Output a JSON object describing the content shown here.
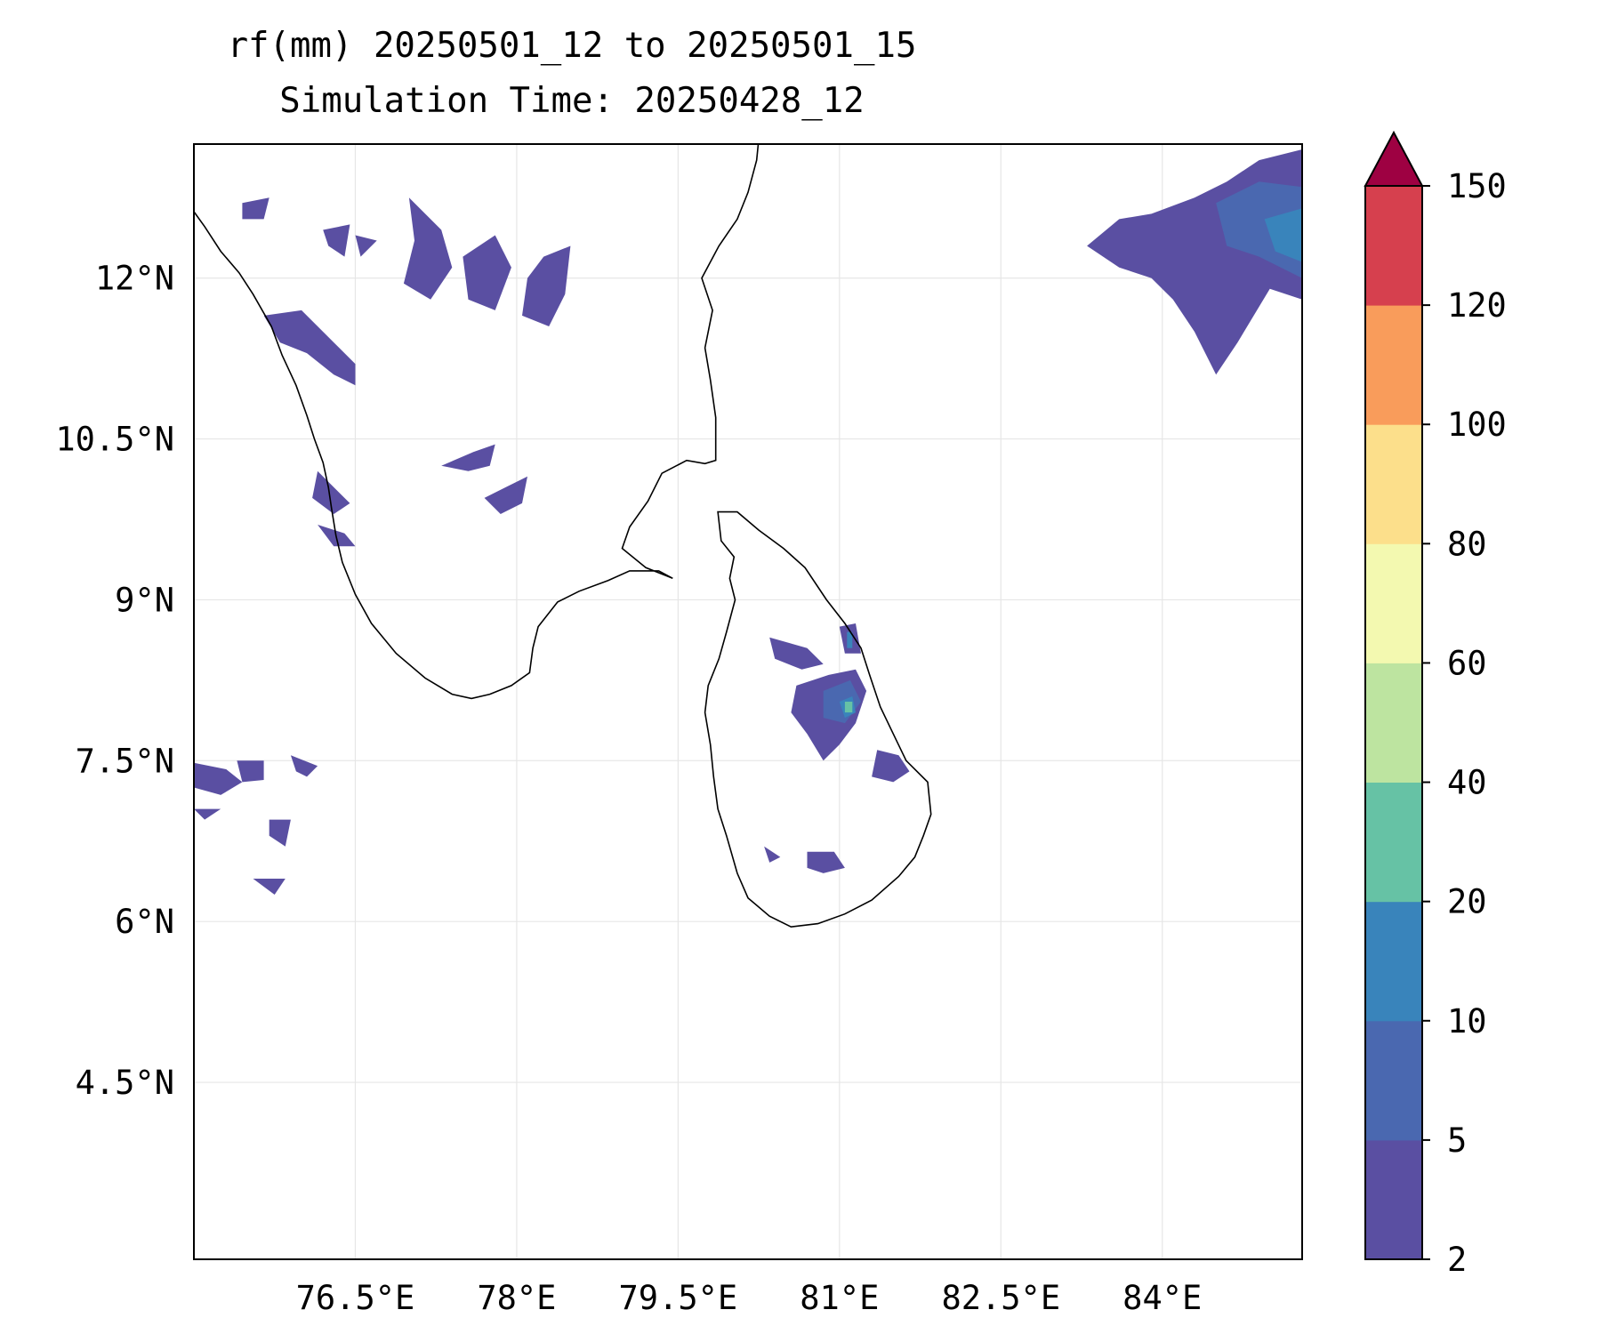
{
  "title": {
    "line1": "rf(mm) 20250501_12 to 20250501_15",
    "line2": "Simulation Time: 20250428_12"
  },
  "map": {
    "lon_range": [
      75.0,
      85.3
    ],
    "lat_range": [
      2.85,
      13.25
    ],
    "lon_ticks": [
      {
        "value": 76.5,
        "label": "76.5°E"
      },
      {
        "value": 78.0,
        "label": "78°E"
      },
      {
        "value": 79.5,
        "label": "79.5°E"
      },
      {
        "value": 81.0,
        "label": "81°E"
      },
      {
        "value": 82.5,
        "label": "82.5°E"
      },
      {
        "value": 84.0,
        "label": "84°E"
      }
    ],
    "lat_ticks": [
      {
        "value": 4.5,
        "label": "4.5°N"
      },
      {
        "value": 6.0,
        "label": "6°N"
      },
      {
        "value": 7.5,
        "label": "7.5°N"
      },
      {
        "value": 9.0,
        "label": "9°N"
      },
      {
        "value": 10.5,
        "label": "10.5°N"
      },
      {
        "value": 12.0,
        "label": "12°N"
      }
    ],
    "gridlines": true,
    "coastline_color": "#000000"
  },
  "colorbar": {
    "levels": [
      2,
      5,
      10,
      20,
      40,
      60,
      80,
      100,
      120,
      150
    ],
    "colors": [
      "#5a4fa2",
      "#4a68b0",
      "#3984bb",
      "#66c2a5",
      "#bde4a0",
      "#f3f9b0",
      "#fcdf8b",
      "#f99c5b",
      "#d6404e"
    ],
    "extend_color": "#9e0142",
    "extend": "max",
    "placement": "right"
  }
}
